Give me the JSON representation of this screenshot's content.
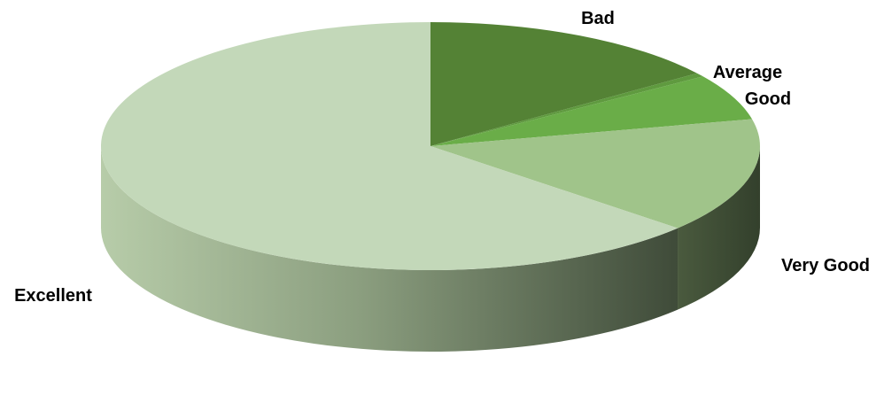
{
  "chart_data": {
    "type": "pie",
    "style": "3d",
    "title": "",
    "start_angle_deg": 0,
    "direction": "clockwise",
    "categories": [
      "Bad",
      "Average",
      "Good",
      "Very Good",
      "Excellent"
    ],
    "values": [
      15,
      0.5,
      6,
      15,
      63.5
    ],
    "label_position": "outside",
    "colors": {
      "Bad": "#548235",
      "Average": "#5f9a3f",
      "Good": "#6aad48",
      "Very Good": "#a0c48a",
      "Excellent": "#c3d8b9"
    },
    "side_color": "#8fa882",
    "legend": "none"
  }
}
